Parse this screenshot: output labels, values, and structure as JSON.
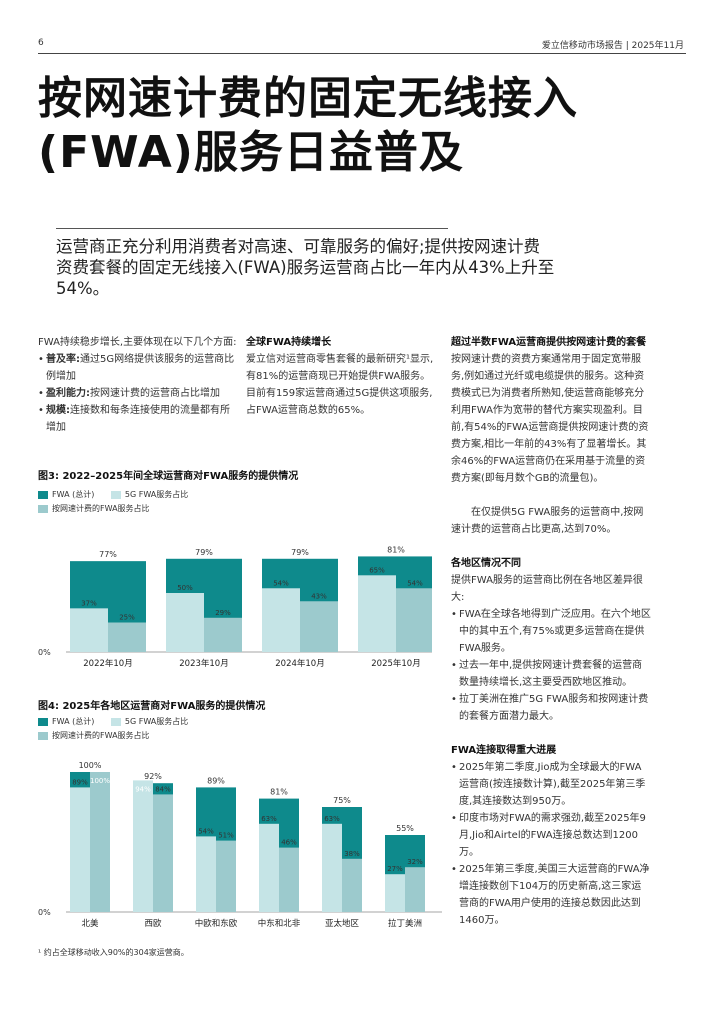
{
  "header": {
    "page_number": "6",
    "report": "爱立信移动市场报告 | 2025年11月"
  },
  "title": {
    "line1": "按网速计费的固定无线接入",
    "line2": "(FWA)服务日益普及"
  },
  "lead": "运营商正充分利用消费者对高速、可靠服务的偏好;提供按网速计费资费套餐的固定无线接入(FWA)服务运营商占比一年内从43%上升至54%。",
  "col1": {
    "intro": "FWA持续稳步增长,主要体现在以下几个方面:",
    "bullets": [
      {
        "bold": "普及率:",
        "text": "通过5G网络提供该服务的运营商比例增加"
      },
      {
        "bold": "盈利能力:",
        "text": "按网速计费的运营商占比增加"
      },
      {
        "bold": "规模:",
        "text": "连接数和每条连接使用的流量都有所增加"
      }
    ]
  },
  "col2": {
    "heading": "全球FWA持续增长",
    "body": "爱立信对运营商零售套餐的最新研究¹显示,有81%的运营商现已开始提供FWA服务。目前有159家运营商通过5G提供这项服务,占FWA运营商总数的65%。"
  },
  "col3": {
    "section1": {
      "heading": "超过半数FWA运营商提供按网速计费的套餐",
      "p1": "按网速计费的资费方案通常用于固定宽带服务,例如通过光纤或电缆提供的服务。这种资费模式已为消费者所熟知,使运营商能够充分利用FWA作为宽带的替代方案实现盈利。目前,有54%的FWA运营商提供按网速计费的资费方案,相比一年前的43%有了显著增长。其余46%的FWA运营商仍在采用基于流量的资费方案(即每月数个GB的流量包)。",
      "p2": "在仅提供5G FWA服务的运营商中,按网速计费的运营商占比更高,达到70%。"
    },
    "section2": {
      "heading": "各地区情况不同",
      "intro": "提供FWA服务的运营商比例在各地区差异很大:",
      "bullets": [
        "FWA在全球各地得到广泛应用。在六个地区中的其中五个,有75%或更多运营商在提供FWA服务。",
        "过去一年中,提供按网速计费套餐的运营商数量持续增长,这主要受西欧地区推动。",
        "拉丁美洲在推广5G FWA服务和按网速计费的套餐方面潜力最大。"
      ]
    },
    "section3": {
      "heading": "FWA连接取得重大进展",
      "bullets": [
        "2025年第二季度,Jio成为全球最大的FWA运营商(按连接数计算),截至2025年第三季度,其连接数达到950万。",
        "印度市场对FWA的需求强劲,截至2025年9月,Jio和Airtel的FWA连接总数达到1200万。",
        "2025年第三季度,美国三大运营商的FWA净增连接数创下104万的历史新高,这三家运营商的FWA用户使用的连接总数因此达到1460万。"
      ]
    }
  },
  "colors": {
    "fwa_total": "#0e8a8c",
    "fwa_5g": "#c5e4e6",
    "speed_based": "#9ccacd"
  },
  "chart_data": [
    {
      "type": "bar",
      "title": "图3: 2022–2025年间全球运营商对FWA服务的提供情况",
      "legend": [
        "FWA (总计)",
        "5G FWA服务占比",
        "按网速计费的FWA服务占比"
      ],
      "categories": [
        "2022年10月",
        "2023年10月",
        "2024年10月",
        "2025年10月"
      ],
      "series": [
        {
          "name": "FWA (总计)",
          "values": [
            77,
            79,
            79,
            81
          ]
        },
        {
          "name": "5G FWA服务占比",
          "values": [
            37,
            50,
            54,
            65
          ]
        },
        {
          "name": "按网速计费的FWA服务占比",
          "values": [
            25,
            29,
            43,
            54
          ]
        }
      ],
      "ylim": [
        0,
        100
      ],
      "y_label_zero": "0%"
    },
    {
      "type": "bar",
      "title": "图4: 2025年各地区运营商对FWA服务的提供情况",
      "legend": [
        "FWA (总计)",
        "5G FWA服务占比",
        "按网速计费的FWA服务占比"
      ],
      "categories": [
        "北美",
        "西欧",
        "中欧和东欧",
        "中东和北非",
        "亚太地区",
        "拉丁美洲"
      ],
      "series": [
        {
          "name": "FWA (总计)",
          "values": [
            100,
            92,
            89,
            81,
            75,
            55
          ]
        },
        {
          "name": "5G FWA服务占比",
          "values": [
            89,
            94,
            54,
            63,
            63,
            27
          ]
        },
        {
          "name": "按网速计费的FWA服务占比",
          "values": [
            100,
            84,
            51,
            46,
            38,
            32
          ]
        }
      ],
      "ylim": [
        0,
        100
      ],
      "y_label_zero": "0%"
    }
  ],
  "footnote": "¹ 约占全球移动收入90%的304家运营商。"
}
